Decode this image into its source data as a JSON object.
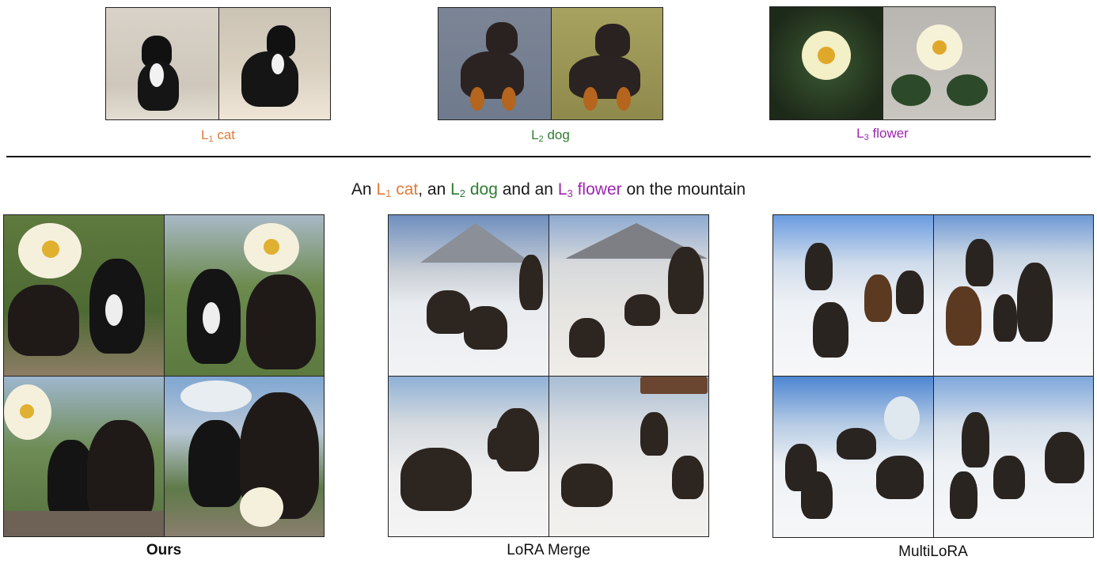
{
  "refs": [
    {
      "sub_prefix": "L",
      "sub": "1",
      "word": "cat",
      "color": "#e07b39"
    },
    {
      "sub_prefix": "L",
      "sub": "2",
      "word": "dog",
      "color": "#2e7d32"
    },
    {
      "sub_prefix": "L",
      "sub": "3",
      "word": "flower",
      "color": "#9c27b0"
    }
  ],
  "prompt": {
    "p1": "An ",
    "p2": ", an ",
    "p3": " and an ",
    "p4": " on the mountain"
  },
  "methods": [
    {
      "label": "Ours",
      "bold": true
    },
    {
      "label": "LoRA Merge",
      "bold": false
    },
    {
      "label": "MultiLoRA",
      "bold": false
    }
  ]
}
